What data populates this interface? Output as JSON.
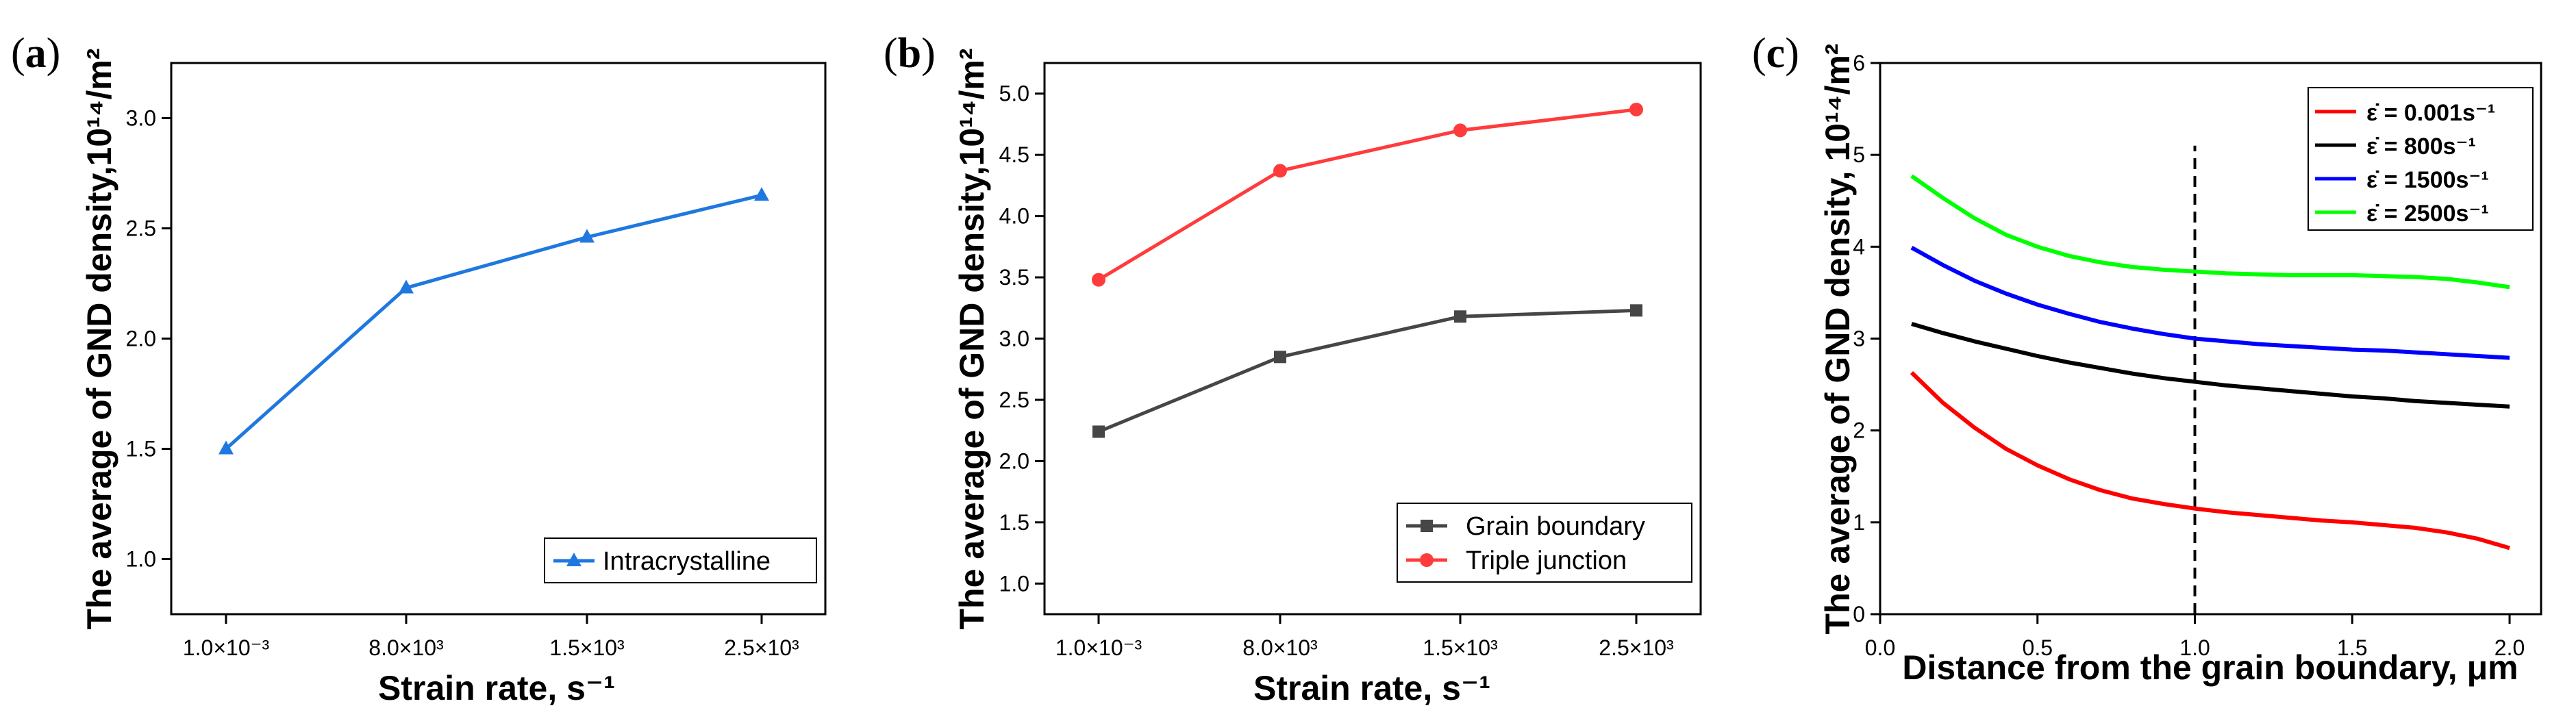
{
  "chart_data": [
    {
      "panel": "(a)",
      "type": "line",
      "categories": [
        "1.0×10⁻³",
        "8.0×10³",
        "1.5×10³",
        "2.5×10³"
      ],
      "series": [
        {
          "name": "Intracrystalline",
          "color": "#1f78e0",
          "marker": "triangle",
          "values": [
            1.5,
            2.23,
            2.46,
            2.65
          ]
        }
      ],
      "xlabel": "Strain rate, s⁻¹",
      "ylabel": "The average of GND density,10¹⁴/m²",
      "ylim": [
        0.75,
        3.25
      ],
      "yticks": [
        1.0,
        1.5,
        2.0,
        2.5,
        3.0
      ],
      "ytick_labels": [
        "1.0",
        "1.5",
        "2.0",
        "2.5",
        "3.0"
      ],
      "legend": "bottom-right",
      "grid": false
    },
    {
      "panel": "(b)",
      "type": "line",
      "categories": [
        "1.0×10⁻³",
        "8.0×10³",
        "1.5×10³",
        "2.5×10³"
      ],
      "series": [
        {
          "name": "Grain boundary",
          "color": "#464646",
          "marker": "square",
          "values": [
            2.24,
            2.85,
            3.18,
            3.23
          ]
        },
        {
          "name": "Triple junction",
          "color": "#ff3b3b",
          "marker": "circle",
          "values": [
            3.48,
            4.37,
            4.7,
            4.87
          ]
        }
      ],
      "xlabel": "Strain rate, s⁻¹",
      "ylabel": "The average of GND density,10¹⁴/m²",
      "ylim": [
        0.75,
        5.25
      ],
      "yticks": [
        1.0,
        1.5,
        2.0,
        2.5,
        3.0,
        3.5,
        4.0,
        4.5,
        5.0
      ],
      "ytick_labels": [
        "1.0",
        "1.5",
        "2.0",
        "2.5",
        "3.0",
        "3.5",
        "4.0",
        "4.5",
        "5.0"
      ],
      "legend": "bottom-right",
      "grid": false
    },
    {
      "panel": "(c)",
      "type": "line",
      "series": [
        {
          "name": "ε̇ = 0.001s⁻¹",
          "color": "#ff0000",
          "x": [
            0.1,
            0.2,
            0.3,
            0.4,
            0.5,
            0.6,
            0.7,
            0.8,
            0.9,
            1.0,
            1.1,
            1.2,
            1.3,
            1.4,
            1.5,
            1.6,
            1.7,
            1.8,
            1.9,
            2.0
          ],
          "values": [
            2.63,
            2.3,
            2.03,
            1.8,
            1.62,
            1.47,
            1.35,
            1.26,
            1.2,
            1.15,
            1.11,
            1.08,
            1.05,
            1.02,
            1.0,
            0.97,
            0.94,
            0.89,
            0.82,
            0.72
          ]
        },
        {
          "name": "ε̇ = 800s⁻¹",
          "color": "#000000",
          "x": [
            0.1,
            0.2,
            0.3,
            0.4,
            0.5,
            0.6,
            0.7,
            0.8,
            0.9,
            1.0,
            1.1,
            1.2,
            1.3,
            1.4,
            1.5,
            1.6,
            1.7,
            1.8,
            1.9,
            2.0
          ],
          "values": [
            3.16,
            3.06,
            2.97,
            2.89,
            2.81,
            2.74,
            2.68,
            2.62,
            2.57,
            2.53,
            2.49,
            2.46,
            2.43,
            2.4,
            2.37,
            2.35,
            2.32,
            2.3,
            2.28,
            2.26
          ]
        },
        {
          "name": "ε̇ = 1500s⁻¹",
          "color": "#0000ff",
          "x": [
            0.1,
            0.2,
            0.3,
            0.4,
            0.5,
            0.6,
            0.7,
            0.8,
            0.9,
            1.0,
            1.1,
            1.2,
            1.3,
            1.4,
            1.5,
            1.6,
            1.7,
            1.8,
            1.9,
            2.0
          ],
          "values": [
            3.99,
            3.8,
            3.63,
            3.49,
            3.37,
            3.27,
            3.18,
            3.11,
            3.05,
            3.0,
            2.97,
            2.94,
            2.92,
            2.9,
            2.88,
            2.87,
            2.85,
            2.83,
            2.81,
            2.79
          ]
        },
        {
          "name": "ε̇ = 2500s⁻¹",
          "color": "#00ff00",
          "x": [
            0.1,
            0.2,
            0.3,
            0.4,
            0.5,
            0.6,
            0.7,
            0.8,
            0.9,
            1.0,
            1.1,
            1.2,
            1.3,
            1.4,
            1.5,
            1.6,
            1.7,
            1.8,
            1.9,
            2.0
          ],
          "values": [
            4.77,
            4.53,
            4.31,
            4.13,
            4.0,
            3.9,
            3.83,
            3.78,
            3.75,
            3.73,
            3.71,
            3.7,
            3.69,
            3.69,
            3.69,
            3.68,
            3.67,
            3.65,
            3.61,
            3.56
          ]
        }
      ],
      "xlabel": "Distance from the grain boundary, μm",
      "ylabel": "The average of GND density, 10¹⁴/m²",
      "xlim": [
        0.0,
        2.1
      ],
      "ylim": [
        0,
        6
      ],
      "xticks": [
        0.0,
        0.5,
        1.0,
        1.5,
        2.0
      ],
      "xtick_labels": [
        "0.0",
        "0.5",
        "1.0",
        "1.5",
        "2.0"
      ],
      "yticks": [
        0,
        1,
        2,
        3,
        4,
        5,
        6
      ],
      "ytick_labels": [
        "0",
        "1",
        "2",
        "3",
        "4",
        "5",
        "6"
      ],
      "annotations": [
        {
          "type": "vertical-dashed-line",
          "x": 1.0,
          "y_top": 5.1
        }
      ],
      "legend": "top-right",
      "grid": false
    }
  ]
}
